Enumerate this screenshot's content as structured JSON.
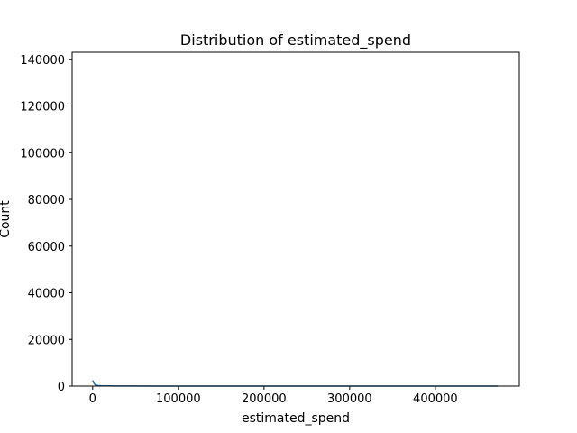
{
  "chart_data": {
    "type": "line",
    "title": "Distribution of estimated_spend",
    "xlabel": "estimated_spend",
    "ylabel": "Count",
    "xlim": [
      -24000,
      498000
    ],
    "ylim": [
      0,
      143000
    ],
    "xticks": [
      0,
      100000,
      200000,
      300000,
      400000
    ],
    "yticks": [
      0,
      20000,
      40000,
      60000,
      80000,
      100000,
      120000,
      140000
    ],
    "grid": false,
    "series": [
      {
        "color": "#1f77b4",
        "x": [
          0,
          1500,
          3000,
          6000,
          10000,
          20000,
          40000,
          80000,
          150000,
          250000,
          350000,
          450000,
          473000
        ],
        "y": [
          2500,
          1200,
          500,
          250,
          150,
          80,
          40,
          20,
          10,
          5,
          3,
          2,
          1
        ]
      }
    ]
  }
}
